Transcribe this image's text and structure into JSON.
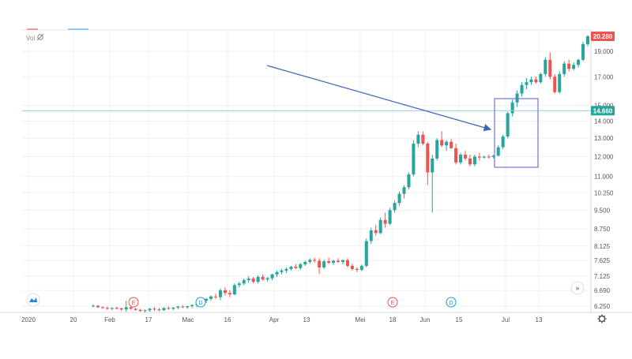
{
  "header": {
    "vol_label": "Vol",
    "vol_icon": "eye-off-icon"
  },
  "scale_buttons": {
    "right_arrows": "»"
  },
  "events": [
    "E",
    "D",
    "E",
    "D"
  ],
  "chart_data": {
    "type": "candlestick",
    "y_scale": "log",
    "y_ticks": [
      "19.000",
      "17.000",
      "15.000",
      "14.000",
      "13.000",
      "12.000",
      "11.000",
      "10.250",
      "9.500",
      "8.750",
      "8.125",
      "7.625",
      "7.125",
      "6.690",
      "6.250"
    ],
    "x_ticks": [
      "2020",
      "20",
      "Feb",
      "17",
      "Mac",
      "16",
      "Apr",
      "13",
      "Mei",
      "18",
      "Jun",
      "15",
      "Jul",
      "13"
    ],
    "last_price": "20.280",
    "crosshair_price": "14.660",
    "colors": {
      "up": "#26a69a",
      "down": "#ef5350",
      "arrow": "#3d65b8",
      "box": "#7b6fe0",
      "crosshair": "#9ec3e6"
    },
    "candles": [
      [
        6.25,
        6.3,
        6.22,
        6.26
      ],
      [
        6.26,
        6.28,
        6.2,
        6.22
      ],
      [
        6.22,
        6.25,
        6.18,
        6.2
      ],
      [
        6.2,
        6.24,
        6.15,
        6.18
      ],
      [
        6.18,
        6.22,
        6.14,
        6.2
      ],
      [
        6.2,
        6.24,
        6.16,
        6.19
      ],
      [
        6.19,
        6.21,
        6.12,
        6.16
      ],
      [
        6.16,
        6.4,
        6.1,
        6.22
      ],
      [
        6.22,
        6.25,
        6.15,
        6.18
      ],
      [
        6.18,
        6.2,
        6.12,
        6.15
      ],
      [
        6.15,
        6.18,
        6.1,
        6.12
      ],
      [
        6.12,
        6.16,
        6.08,
        6.14
      ],
      [
        6.14,
        6.2,
        6.1,
        6.18
      ],
      [
        6.18,
        6.22,
        6.12,
        6.16
      ],
      [
        6.16,
        6.2,
        6.11,
        6.14
      ],
      [
        6.14,
        6.22,
        6.12,
        6.2
      ],
      [
        6.2,
        6.24,
        6.15,
        6.18
      ],
      [
        6.18,
        6.22,
        6.14,
        6.21
      ],
      [
        6.21,
        6.26,
        6.16,
        6.24
      ],
      [
        6.24,
        6.28,
        6.2,
        6.22
      ],
      [
        6.22,
        6.26,
        6.18,
        6.25
      ],
      [
        6.25,
        6.3,
        6.2,
        6.28
      ],
      [
        6.28,
        6.32,
        6.22,
        6.3
      ],
      [
        6.3,
        6.45,
        6.26,
        6.4
      ],
      [
        6.4,
        6.48,
        6.34,
        6.45
      ],
      [
        6.45,
        6.55,
        6.4,
        6.52
      ],
      [
        6.52,
        6.6,
        6.45,
        6.5
      ],
      [
        6.5,
        6.75,
        6.42,
        6.7
      ],
      [
        6.7,
        6.78,
        6.55,
        6.62
      ],
      [
        6.62,
        6.7,
        6.5,
        6.58
      ],
      [
        6.58,
        6.9,
        6.55,
        6.85
      ],
      [
        6.85,
        6.95,
        6.78,
        6.9
      ],
      [
        6.9,
        7.05,
        6.84,
        7.0
      ],
      [
        7.0,
        7.12,
        6.92,
        7.05
      ],
      [
        7.05,
        7.1,
        6.9,
        6.95
      ],
      [
        6.95,
        7.15,
        6.9,
        7.1
      ],
      [
        7.1,
        7.18,
        6.98,
        7.02
      ],
      [
        7.02,
        7.1,
        6.96,
        7.06
      ],
      [
        7.06,
        7.2,
        7.0,
        7.18
      ],
      [
        7.18,
        7.3,
        7.1,
        7.25
      ],
      [
        7.25,
        7.35,
        7.18,
        7.3
      ],
      [
        7.3,
        7.4,
        7.22,
        7.35
      ],
      [
        7.35,
        7.45,
        7.3,
        7.42
      ],
      [
        7.42,
        7.5,
        7.35,
        7.38
      ],
      [
        7.38,
        7.55,
        7.32,
        7.5
      ],
      [
        7.5,
        7.62,
        7.45,
        7.58
      ],
      [
        7.58,
        7.7,
        7.52,
        7.65
      ],
      [
        7.65,
        7.72,
        7.56,
        7.62
      ],
      [
        7.62,
        7.7,
        7.2,
        7.4
      ],
      [
        7.4,
        7.65,
        7.35,
        7.6
      ],
      [
        7.6,
        7.72,
        7.52,
        7.55
      ],
      [
        7.55,
        7.65,
        7.48,
        7.62
      ],
      [
        7.62,
        7.7,
        7.55,
        7.58
      ],
      [
        7.58,
        7.66,
        7.5,
        7.64
      ],
      [
        7.64,
        7.7,
        7.4,
        7.45
      ],
      [
        7.45,
        7.52,
        7.3,
        7.35
      ],
      [
        7.35,
        7.4,
        7.25,
        7.32
      ],
      [
        7.32,
        7.5,
        7.28,
        7.45
      ],
      [
        7.45,
        8.4,
        7.4,
        8.3
      ],
      [
        8.3,
        8.8,
        8.2,
        8.7
      ],
      [
        8.7,
        8.9,
        8.5,
        8.6
      ],
      [
        8.6,
        9.2,
        8.55,
        9.1
      ],
      [
        9.1,
        9.4,
        8.8,
        8.95
      ],
      [
        8.95,
        9.6,
        8.9,
        9.5
      ],
      [
        9.5,
        9.9,
        9.4,
        9.8
      ],
      [
        9.8,
        10.3,
        9.7,
        10.2
      ],
      [
        10.2,
        10.6,
        10.0,
        10.5
      ],
      [
        10.5,
        11.2,
        10.4,
        11.1
      ],
      [
        11.1,
        12.9,
        11.0,
        12.7
      ],
      [
        12.7,
        13.4,
        12.5,
        13.2
      ],
      [
        13.2,
        13.4,
        12.6,
        12.7
      ],
      [
        12.7,
        12.8,
        10.6,
        11.2
      ],
      [
        11.2,
        12.1,
        9.4,
        11.9
      ],
      [
        11.9,
        13.0,
        11.8,
        12.9
      ],
      [
        12.9,
        13.4,
        12.5,
        12.6
      ],
      [
        12.6,
        12.9,
        12.3,
        12.8
      ],
      [
        12.8,
        12.95,
        12.4,
        12.45
      ],
      [
        12.45,
        12.7,
        11.6,
        11.7
      ],
      [
        11.7,
        12.2,
        11.6,
        12.1
      ],
      [
        12.1,
        12.3,
        11.8,
        11.9
      ],
      [
        11.9,
        12.1,
        11.5,
        11.6
      ],
      [
        11.6,
        12.1,
        11.5,
        12.0
      ],
      [
        12.0,
        12.2,
        11.8,
        11.95
      ],
      [
        11.95,
        12.05,
        11.9,
        12.0
      ],
      [
        12.0,
        12.1,
        11.9,
        11.98
      ],
      [
        11.98,
        12.1,
        11.9,
        12.05
      ],
      [
        12.05,
        12.6,
        12.0,
        12.5
      ],
      [
        12.5,
        13.2,
        12.4,
        13.1
      ],
      [
        13.1,
        14.6,
        13.0,
        14.5
      ],
      [
        14.5,
        15.4,
        14.3,
        15.2
      ],
      [
        15.2,
        16.0,
        14.9,
        15.8
      ],
      [
        15.8,
        16.6,
        15.6,
        16.4
      ],
      [
        16.4,
        16.9,
        16.1,
        16.6
      ],
      [
        16.6,
        17.0,
        16.4,
        16.8
      ],
      [
        16.8,
        17.0,
        16.5,
        16.6
      ],
      [
        16.6,
        17.3,
        16.5,
        17.2
      ],
      [
        17.2,
        18.5,
        17.0,
        18.3
      ],
      [
        18.3,
        18.9,
        16.8,
        17.0
      ],
      [
        17.0,
        17.2,
        15.8,
        15.9
      ],
      [
        15.9,
        17.4,
        15.8,
        17.2
      ],
      [
        17.2,
        18.2,
        17.0,
        18.0
      ],
      [
        18.0,
        18.3,
        17.4,
        17.6
      ],
      [
        17.6,
        18.1,
        17.5,
        17.9
      ],
      [
        17.9,
        18.4,
        17.7,
        18.3
      ],
      [
        18.3,
        19.8,
        18.2,
        19.6
      ],
      [
        19.6,
        20.4,
        19.4,
        20.28
      ]
    ]
  }
}
